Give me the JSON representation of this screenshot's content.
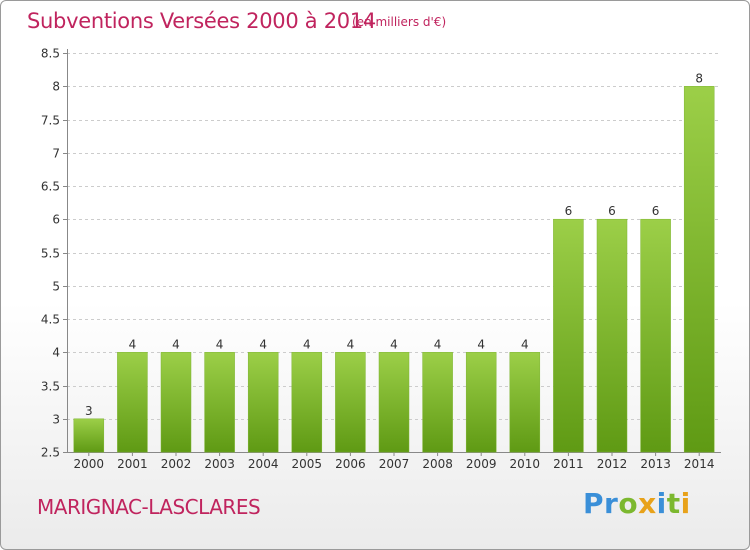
{
  "header": {
    "title": "Subventions Versées 2000 à 2014",
    "subtitle": "(en milliers d'€)"
  },
  "footer": {
    "commune": "MARIGNAC-LASCLARES",
    "logo_letters": [
      {
        "ch": "P",
        "color": "#3a8fd8"
      },
      {
        "ch": "r",
        "color": "#3a8fd8"
      },
      {
        "ch": "o",
        "color": "#7cb82f"
      },
      {
        "ch": "x",
        "color": "#e8a21a"
      },
      {
        "ch": "i",
        "color": "#3a8fd8"
      },
      {
        "ch": "t",
        "color": "#7cb82f"
      },
      {
        "ch": "i",
        "color": "#e8a21a"
      }
    ]
  },
  "colors": {
    "title": "#c0245e",
    "bar_top": "#9ccf48",
    "bar_bottom": "#5f9a14",
    "grid": "#cccccc"
  },
  "chart_data": {
    "type": "bar",
    "categories": [
      "2000",
      "2001",
      "2002",
      "2003",
      "2004",
      "2005",
      "2006",
      "2007",
      "2008",
      "2009",
      "2010",
      "2011",
      "2012",
      "2013",
      "2014"
    ],
    "values": [
      3,
      4,
      4,
      4,
      4,
      4,
      4,
      4,
      4,
      4,
      4,
      6,
      6,
      6,
      8
    ],
    "data_labels": [
      "3",
      "4",
      "4",
      "4",
      "4",
      "4",
      "4",
      "4",
      "4",
      "4",
      "4",
      "6",
      "6",
      "6",
      "8"
    ],
    "ylim": [
      2.5,
      8.5
    ],
    "yticks": [
      2.5,
      3,
      3.5,
      4,
      4.5,
      5,
      5.5,
      6,
      6.5,
      7,
      7.5,
      8,
      8.5
    ],
    "ytick_labels": [
      "2.5",
      "3",
      "3.5",
      "4",
      "4.5",
      "5",
      "5.5",
      "6",
      "6.5",
      "7",
      "7.5",
      "8",
      "8.5"
    ],
    "grid": "horizontal dashed"
  }
}
